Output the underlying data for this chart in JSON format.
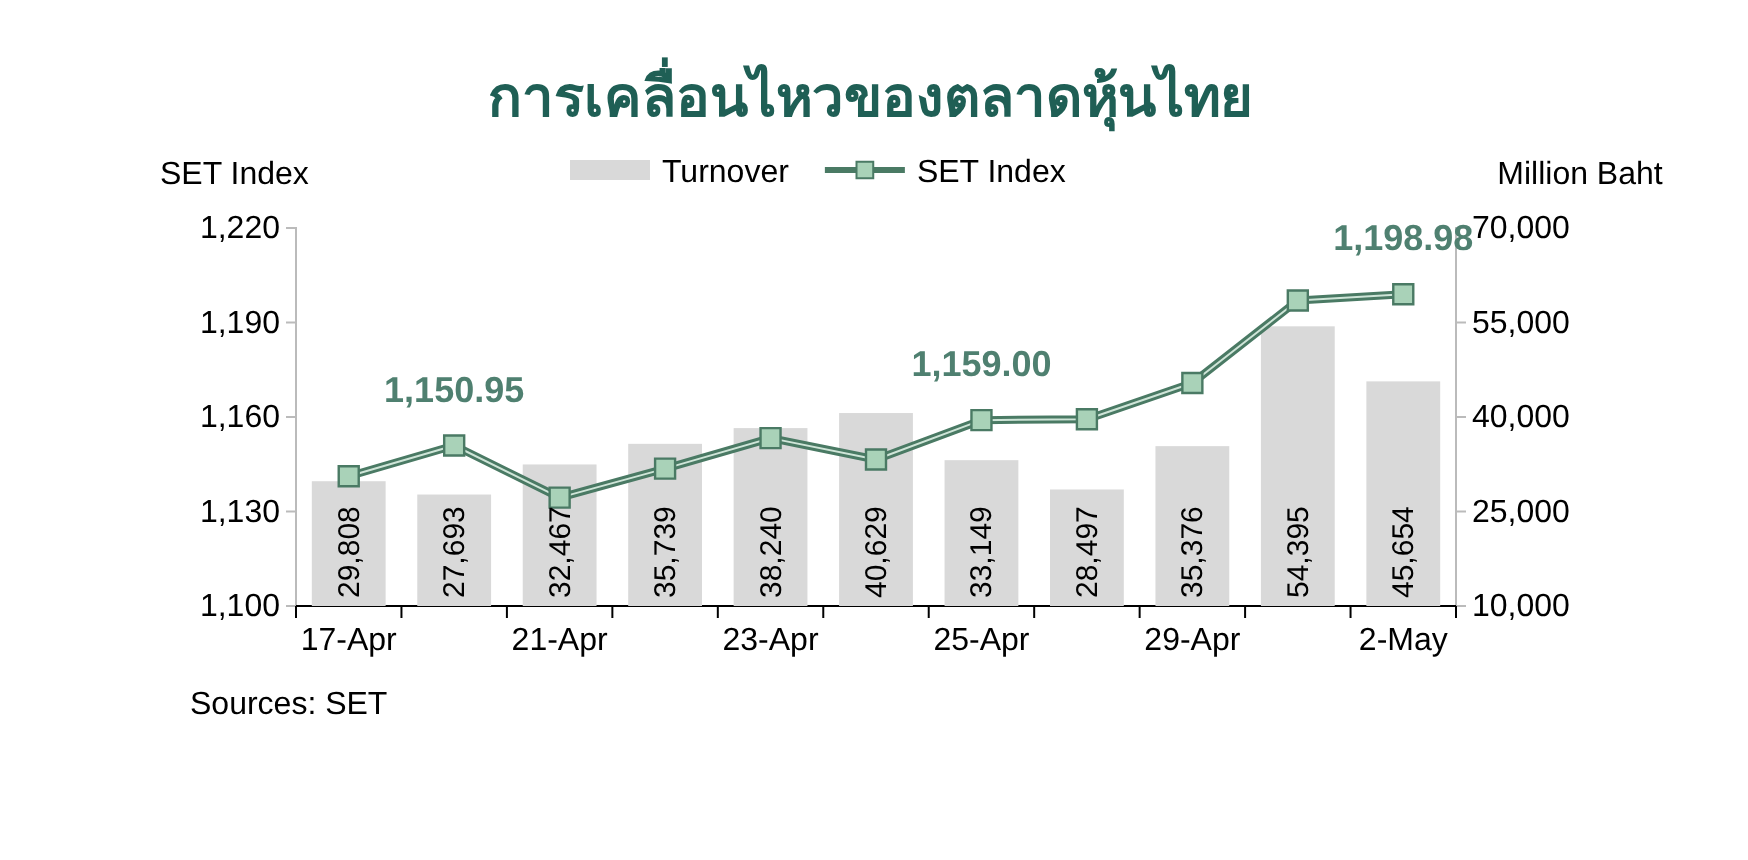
{
  "chart_data": {
    "type": "bar",
    "title": "การเคลื่อนไหวของตลาดหุ้นไทย",
    "ylabel": "SET Index",
    "y2label": "Million Baht",
    "categories": [
      "17-Apr",
      null,
      "21-Apr",
      null,
      "23-Apr",
      null,
      "25-Apr",
      null,
      "29-Apr",
      null,
      "2-May"
    ],
    "series": [
      {
        "name": "Turnover",
        "axis": "y2",
        "color": "#d9d9d9",
        "values": [
          29808,
          27693,
          32467,
          35739,
          38240,
          40629,
          33149,
          28497,
          35376,
          54395,
          45654
        ],
        "value_labels": [
          "29,808",
          "27,693",
          "32,467",
          "35,739",
          "38,240",
          "40,629",
          "33,149",
          "28,497",
          "35,376",
          "54,395",
          "45,654"
        ]
      },
      {
        "name": "SET Index",
        "type": "line",
        "color": "#4a7a64",
        "values": [
          1141.2,
          1150.95,
          1134.4,
          1143.6,
          1153.3,
          1146.5,
          1159.0,
          1159.3,
          1170.8,
          1197.0,
          1198.98
        ],
        "value_labels": [
          null,
          "1,150.95",
          null,
          null,
          null,
          null,
          "1,159.00",
          null,
          null,
          null,
          "1,198.98"
        ]
      }
    ],
    "ylim": [
      1100,
      1220
    ],
    "yticks": [
      {
        "value": 1100,
        "label": "1,100"
      },
      {
        "value": 1130,
        "label": "1,130"
      },
      {
        "value": 1160,
        "label": "1,160"
      },
      {
        "value": 1190,
        "label": "1,190"
      },
      {
        "value": 1220,
        "label": "1,220"
      }
    ],
    "y2lim": [
      10000,
      70000
    ],
    "y2ticks": [
      {
        "value": 10000,
        "label": "10,000"
      },
      {
        "value": 25000,
        "label": "25,000"
      },
      {
        "value": 40000,
        "label": "40,000"
      },
      {
        "value": 55000,
        "label": "55,000"
      },
      {
        "value": 70000,
        "label": "70,000"
      }
    ],
    "marker": "square",
    "legend": "top",
    "annotations": [
      "Sources: SET"
    ]
  }
}
